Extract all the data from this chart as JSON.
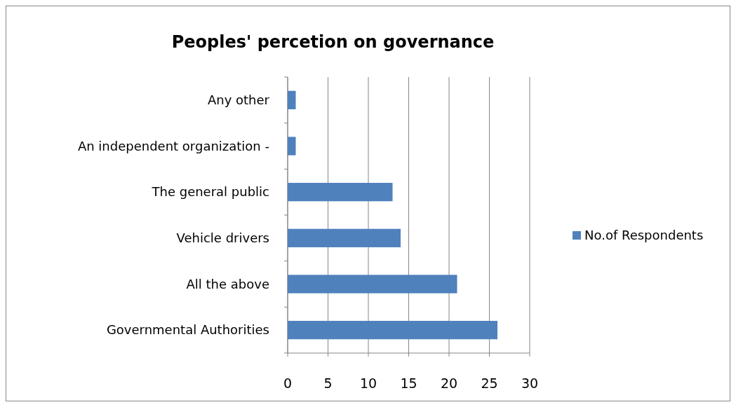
{
  "chart_data": {
    "type": "bar",
    "orientation": "horizontal",
    "title": "Peoples' percetion on governance",
    "categories": [
      "Any other",
      "An independent organization  -",
      "The general public",
      "Vehicle drivers",
      "All the above",
      "Governmental Authorities"
    ],
    "series": [
      {
        "name": "No.of Respondents",
        "color": "#4f81bd",
        "values": [
          1,
          1,
          13,
          14,
          21,
          26
        ]
      }
    ],
    "xlim": [
      0,
      30
    ],
    "xticks": [
      0,
      5,
      10,
      15,
      20,
      25,
      30
    ],
    "grid": "x",
    "legend": "right"
  }
}
